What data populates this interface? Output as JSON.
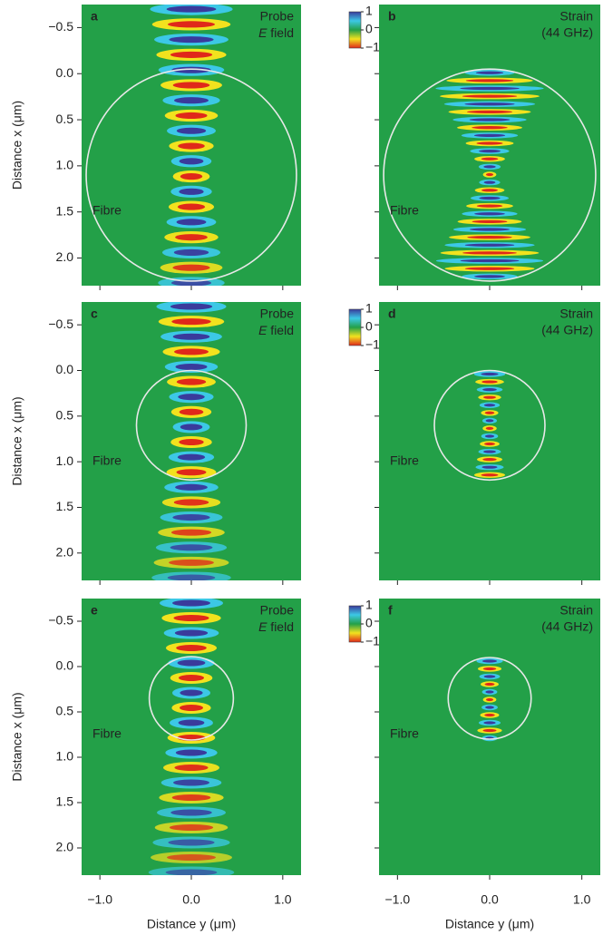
{
  "chart_data": [
    {
      "type": "heatmap",
      "pattern": "field",
      "panel_label": "a",
      "annotation": [
        "Probe",
        "E field"
      ],
      "fibre_label": "Fibre",
      "fibre": {
        "x": 1.1,
        "y": 0,
        "r": 1.15
      },
      "xlim": [
        -1.2,
        1.2
      ],
      "xticks": [
        -1,
        0,
        1
      ],
      "xtick_labels": false,
      "ylim": [
        -0.75,
        2.3
      ],
      "y_inverted": true,
      "ytick_labels": true,
      "yaxis_label": "Distance x (μm)",
      "yticks": [
        {
          "value": -0.5,
          "label": "−0.5"
        },
        {
          "value": 0,
          "label": "0.0"
        },
        {
          "value": 0.5,
          "label": "0.5"
        },
        {
          "value": 1,
          "label": "1.0"
        },
        {
          "value": 1.5,
          "label": "1.5"
        },
        {
          "value": 2,
          "label": "2.0"
        }
      ],
      "colorbar": {
        "lim": [
          -1,
          1
        ],
        "colors": [
          "#e0281a",
          "#f2e21e",
          "#23a048",
          "#3cc8e6",
          "#3a3a9c"
        ],
        "ticks": [
          1,
          0,
          {
            "value": -1,
            "label": "−1"
          }
        ]
      }
    },
    {
      "type": "heatmap",
      "pattern": "strain",
      "panel_label": "b",
      "annotation": [
        "Strain",
        "(44 GHz)"
      ],
      "fibre_label": "Fibre",
      "fibre": {
        "x": 1.1,
        "y": 0,
        "r": 1.15
      },
      "xlim": [
        -1.2,
        1.2
      ],
      "xticks": [
        -1,
        0,
        1
      ],
      "xtick_labels": false,
      "ylim": [
        -0.75,
        2.3
      ],
      "y_inverted": true,
      "ytick_labels": false,
      "yticks": [
        -0.5,
        0,
        0.5,
        1,
        1.5,
        2
      ]
    },
    {
      "type": "heatmap",
      "pattern": "field",
      "panel_label": "c",
      "annotation": [
        "Probe",
        "E field"
      ],
      "fibre_label": "Fibre",
      "fibre": {
        "x": 0.6,
        "y": 0,
        "r": 0.6
      },
      "xlim": [
        -1.2,
        1.2
      ],
      "xticks": [
        -1,
        0,
        1
      ],
      "xtick_labels": false,
      "ylim": [
        -0.75,
        2.3
      ],
      "y_inverted": true,
      "ytick_labels": true,
      "yaxis_label": "Distance x (μm)",
      "yticks": [
        {
          "value": -0.5,
          "label": "−0.5"
        },
        {
          "value": 0,
          "label": "0.0"
        },
        {
          "value": 0.5,
          "label": "0.5"
        },
        {
          "value": 1,
          "label": "1.0"
        },
        {
          "value": 1.5,
          "label": "1.5"
        },
        {
          "value": 2,
          "label": "2.0"
        }
      ],
      "colorbar": {
        "lim": [
          -1,
          1
        ],
        "colors": [
          "#e0281a",
          "#f2e21e",
          "#23a048",
          "#3cc8e6",
          "#3a3a9c"
        ],
        "ticks": [
          1,
          0,
          {
            "value": -1,
            "label": "−1"
          }
        ]
      }
    },
    {
      "type": "heatmap",
      "pattern": "strain",
      "panel_label": "d",
      "annotation": [
        "Strain",
        "(44 GHz)"
      ],
      "fibre_label": "Fibre",
      "fibre": {
        "x": 0.6,
        "y": 0,
        "r": 0.6
      },
      "xlim": [
        -1.2,
        1.2
      ],
      "xticks": [
        -1,
        0,
        1
      ],
      "xtick_labels": false,
      "ylim": [
        -0.75,
        2.3
      ],
      "y_inverted": true,
      "ytick_labels": false,
      "yticks": [
        -0.5,
        0,
        0.5,
        1,
        1.5,
        2
      ]
    },
    {
      "type": "heatmap",
      "pattern": "field",
      "panel_label": "e",
      "annotation": [
        "Probe",
        "E field"
      ],
      "fibre_label": "Fibre",
      "fibre": {
        "x": 0.35,
        "y": 0,
        "r": 0.46
      },
      "xlim": [
        -1.2,
        1.2
      ],
      "xticks": [
        {
          "value": -1,
          "label": "−1.0"
        },
        {
          "value": 0,
          "label": "0.0"
        },
        {
          "value": 1,
          "label": "1.0"
        }
      ],
      "xtick_labels": true,
      "xaxis_label": "Distance y (μm)",
      "ylim": [
        -0.75,
        2.3
      ],
      "y_inverted": true,
      "ytick_labels": true,
      "yaxis_label": "Distance x (μm)",
      "yticks": [
        {
          "value": -0.5,
          "label": "−0.5"
        },
        {
          "value": 0,
          "label": "0.0"
        },
        {
          "value": 0.5,
          "label": "0.5"
        },
        {
          "value": 1,
          "label": "1.0"
        },
        {
          "value": 1.5,
          "label": "1.5"
        },
        {
          "value": 2,
          "label": "2.0"
        }
      ],
      "colorbar": {
        "lim": [
          -1,
          1
        ],
        "colors": [
          "#e0281a",
          "#f2e21e",
          "#23a048",
          "#3cc8e6",
          "#3a3a9c"
        ],
        "ticks": [
          1,
          0,
          {
            "value": -1,
            "label": "−1"
          }
        ]
      }
    },
    {
      "type": "heatmap",
      "pattern": "strain",
      "panel_label": "f",
      "annotation": [
        "Strain",
        "(44 GHz)"
      ],
      "fibre_label": "Fibre",
      "fibre": {
        "x": 0.35,
        "y": 0,
        "r": 0.45
      },
      "xlim": [
        -1.2,
        1.2
      ],
      "xticks": [
        {
          "value": -1,
          "label": "−1.0"
        },
        {
          "value": 0,
          "label": "0.0"
        },
        {
          "value": 1,
          "label": "1.0"
        }
      ],
      "xtick_labels": true,
      "xaxis_label": "Distance y (μm)",
      "ylim": [
        -0.75,
        2.3
      ],
      "y_inverted": true,
      "ytick_labels": false,
      "yticks": [
        -0.5,
        0,
        0.5,
        1,
        1.5,
        2
      ]
    }
  ]
}
